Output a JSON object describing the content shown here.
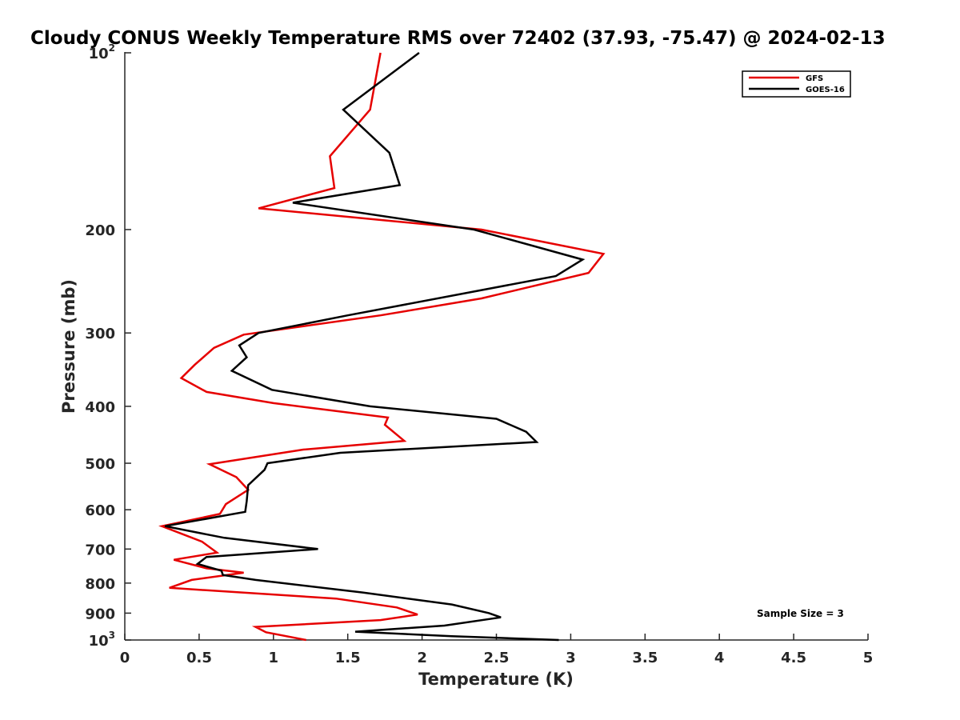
{
  "chart_data": {
    "type": "line",
    "title": "Cloudy CONUS Weekly Temperature RMS over 72402 (37.93, -75.47) @ 2024-02-13",
    "xlabel": "Temperature (K)",
    "ylabel": "Pressure (mb)",
    "xlim": [
      0,
      5
    ],
    "ylim": [
      100,
      1000
    ],
    "y_scale": "log",
    "y_reversed": true,
    "grid": false,
    "legend_position": "top-right",
    "xticks": [
      {
        "value": 0,
        "label": "0"
      },
      {
        "value": 0.5,
        "label": "0.5"
      },
      {
        "value": 1,
        "label": "1"
      },
      {
        "value": 1.5,
        "label": "1.5"
      },
      {
        "value": 2,
        "label": "2"
      },
      {
        "value": 2.5,
        "label": "2.5"
      },
      {
        "value": 3,
        "label": "3"
      },
      {
        "value": 3.5,
        "label": "3.5"
      },
      {
        "value": 4,
        "label": "4"
      },
      {
        "value": 4.5,
        "label": "4.5"
      },
      {
        "value": 5,
        "label": "5"
      }
    ],
    "yticks": [
      {
        "value": 100,
        "base": "10",
        "exp": "2"
      },
      {
        "value": 200,
        "label": "200"
      },
      {
        "value": 300,
        "label": "300"
      },
      {
        "value": 400,
        "label": "400"
      },
      {
        "value": 500,
        "label": "500"
      },
      {
        "value": 600,
        "label": "600"
      },
      {
        "value": 700,
        "label": "700"
      },
      {
        "value": 800,
        "label": "800"
      },
      {
        "value": 900,
        "label": "900"
      },
      {
        "value": 1000,
        "base": "10",
        "exp": "3"
      }
    ],
    "series": [
      {
        "name": "GFS",
        "color": "#e60000",
        "points": [
          [
            1.72,
            100
          ],
          [
            1.65,
            125
          ],
          [
            1.38,
            150
          ],
          [
            1.41,
            170
          ],
          [
            0.9,
            184
          ],
          [
            2.4,
            200
          ],
          [
            3.22,
            220
          ],
          [
            3.12,
            237
          ],
          [
            2.4,
            262
          ],
          [
            1.72,
            280
          ],
          [
            0.8,
            302
          ],
          [
            0.6,
            318
          ],
          [
            0.47,
            340
          ],
          [
            0.38,
            358
          ],
          [
            0.55,
            378
          ],
          [
            1.0,
            395
          ],
          [
            1.77,
            418
          ],
          [
            1.75,
            430
          ],
          [
            1.88,
            458
          ],
          [
            1.2,
            474
          ],
          [
            0.57,
            502
          ],
          [
            0.75,
            528
          ],
          [
            0.83,
            555
          ],
          [
            0.68,
            587
          ],
          [
            0.64,
            610
          ],
          [
            0.25,
            640
          ],
          [
            0.52,
            680
          ],
          [
            0.62,
            710
          ],
          [
            0.33,
            730
          ],
          [
            0.55,
            755
          ],
          [
            0.8,
            768
          ],
          [
            0.45,
            790
          ],
          [
            0.3,
            815
          ],
          [
            1.42,
            850
          ],
          [
            1.83,
            880
          ],
          [
            1.97,
            905
          ],
          [
            1.72,
            925
          ],
          [
            0.88,
            950
          ],
          [
            0.95,
            970
          ],
          [
            1.22,
            1000
          ]
        ]
      },
      {
        "name": "GOES-16",
        "color": "#000000",
        "points": [
          [
            1.98,
            100
          ],
          [
            1.47,
            125
          ],
          [
            1.78,
            148
          ],
          [
            1.85,
            168
          ],
          [
            1.13,
            180
          ],
          [
            2.35,
            200
          ],
          [
            3.08,
            225
          ],
          [
            2.9,
            240
          ],
          [
            1.5,
            280
          ],
          [
            0.9,
            300
          ],
          [
            0.77,
            315
          ],
          [
            0.82,
            330
          ],
          [
            0.72,
            348
          ],
          [
            0.99,
            375
          ],
          [
            1.65,
            400
          ],
          [
            2.5,
            420
          ],
          [
            2.7,
            442
          ],
          [
            2.77,
            460
          ],
          [
            1.45,
            480
          ],
          [
            0.96,
            500
          ],
          [
            0.94,
            513
          ],
          [
            0.83,
            545
          ],
          [
            0.82,
            580
          ],
          [
            0.81,
            605
          ],
          [
            0.27,
            640
          ],
          [
            0.67,
            670
          ],
          [
            1.3,
            700
          ],
          [
            0.55,
            722
          ],
          [
            0.49,
            742
          ],
          [
            0.65,
            762
          ],
          [
            0.66,
            775
          ],
          [
            0.88,
            790
          ],
          [
            1.6,
            830
          ],
          [
            2.2,
            870
          ],
          [
            2.45,
            900
          ],
          [
            2.53,
            915
          ],
          [
            2.15,
            945
          ],
          [
            1.55,
            968
          ],
          [
            2.2,
            985
          ],
          [
            2.92,
            1000
          ]
        ]
      }
    ],
    "annotation": "Sample Size = 3"
  }
}
